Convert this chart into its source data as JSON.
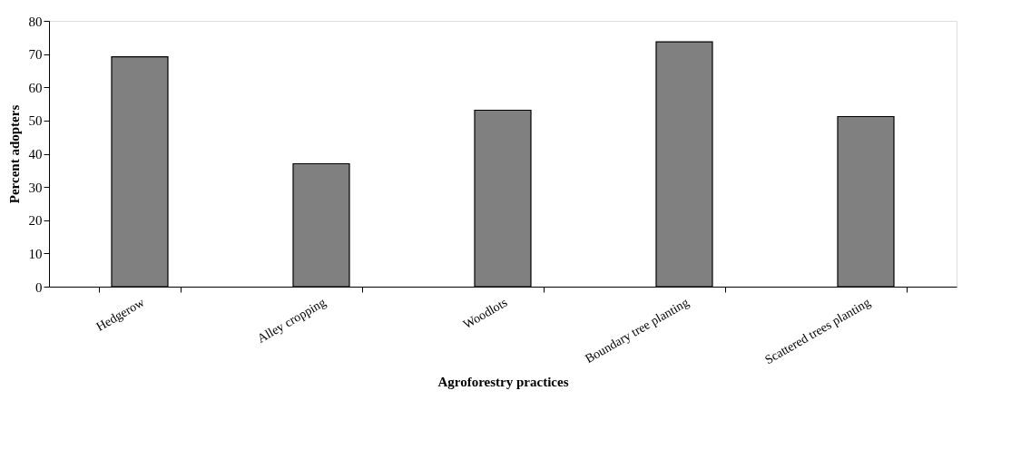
{
  "chart_data": {
    "type": "bar",
    "xlabel": "Agroforestry practices",
    "ylabel": "Percent adopters",
    "categories": [
      "Hedgerow",
      "Alley cropping",
      "Woodlots",
      "Boundary tree planting",
      "Scattered trees planting"
    ],
    "values": [
      69.2,
      37,
      53.1,
      73.7,
      51.2
    ],
    "color": "#808080",
    "ylim": [
      0,
      80
    ],
    "yticks": [
      0,
      10,
      20,
      30,
      40,
      50,
      60,
      70,
      80
    ],
    "grid": false
  }
}
